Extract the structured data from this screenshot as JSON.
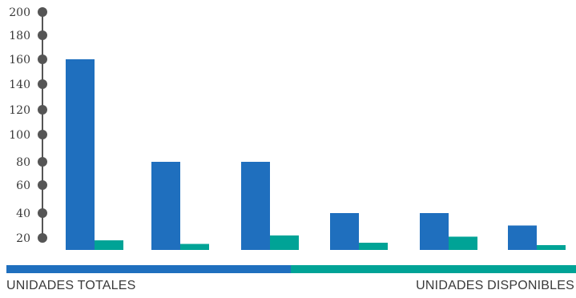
{
  "colors": {
    "total": "#1f6fbe",
    "available": "#00a396",
    "axis": "#555555",
    "text": "#3a3a3a"
  },
  "chart_data": {
    "type": "bar",
    "grid": false,
    "legend_position": "bottom",
    "y_ticks": [
      20,
      40,
      60,
      80,
      100,
      120,
      140,
      160,
      180,
      200
    ],
    "ylim": [
      10,
      200
    ],
    "categories": [
      "",
      "",
      "",
      "",
      "",
      ""
    ],
    "series": [
      {
        "name": "UNIDADES TOTALES",
        "color": "#1f6fbe",
        "values": [
          160,
          80,
          80,
          40,
          40,
          30
        ]
      },
      {
        "name": "UNIDADES DISPONIBLES",
        "color": "#00a396",
        "values": [
          18,
          15,
          22,
          16,
          21,
          14
        ]
      }
    ]
  },
  "legend": {
    "left_label": "UNIDADES TOTALES",
    "right_label": "UNIDADES DISPONIBLES"
  }
}
